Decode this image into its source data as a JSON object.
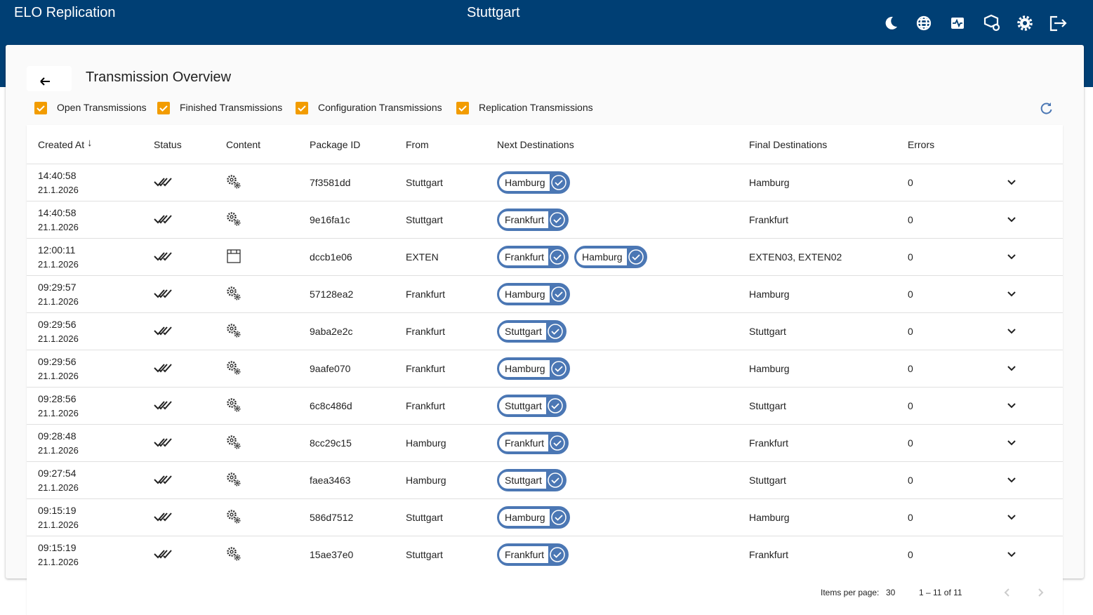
{
  "header": {
    "title": "ELO Replication",
    "location": "Stuttgart"
  },
  "page": {
    "title": "Transmission Overview"
  },
  "filters": [
    {
      "label": "Open Transmissions",
      "checked": true
    },
    {
      "label": "Finished Transmissions",
      "checked": true
    },
    {
      "label": "Configuration Transmissions",
      "checked": true
    },
    {
      "label": "Replication Transmissions",
      "checked": true
    }
  ],
  "table": {
    "columns": [
      "Created At",
      "Status",
      "Content",
      "Package ID",
      "From",
      "Next Destinations",
      "Final Destinations",
      "Errors"
    ],
    "rows": [
      {
        "time": "14:40:58",
        "date": "21.1.2026",
        "package_id": "7f3581dd",
        "from": "Stuttgart",
        "next_destinations": [
          "Hamburg"
        ],
        "final_destinations": "Hamburg",
        "errors": 0
      },
      {
        "time": "14:40:58",
        "date": "21.1.2026",
        "package_id": "9e16fa1c",
        "from": "Stuttgart",
        "next_destinations": [
          "Frankfurt"
        ],
        "final_destinations": "Frankfurt",
        "errors": 0
      },
      {
        "time": "12:00:11",
        "date": "21.1.2026",
        "package_id": "dccb1e06",
        "from": "EXTEN",
        "next_destinations": [
          "Frankfurt",
          "Hamburg"
        ],
        "final_destinations": "EXTEN03, EXTEN02",
        "errors": 0
      },
      {
        "time": "09:29:57",
        "date": "21.1.2026",
        "package_id": "57128ea2",
        "from": "Frankfurt",
        "next_destinations": [
          "Hamburg"
        ],
        "final_destinations": "Hamburg",
        "errors": 0
      },
      {
        "time": "09:29:56",
        "date": "21.1.2026",
        "package_id": "9aba2e2c",
        "from": "Frankfurt",
        "next_destinations": [
          "Stuttgart"
        ],
        "final_destinations": "Stuttgart",
        "errors": 0
      },
      {
        "time": "09:29:56",
        "date": "21.1.2026",
        "package_id": "9aafe070",
        "from": "Frankfurt",
        "next_destinations": [
          "Hamburg"
        ],
        "final_destinations": "Hamburg",
        "errors": 0
      },
      {
        "time": "09:28:56",
        "date": "21.1.2026",
        "package_id": "6c8c486d",
        "from": "Frankfurt",
        "next_destinations": [
          "Stuttgart"
        ],
        "final_destinations": "Stuttgart",
        "errors": 0
      },
      {
        "time": "09:28:48",
        "date": "21.1.2026",
        "package_id": "8cc29c15",
        "from": "Hamburg",
        "next_destinations": [
          "Frankfurt"
        ],
        "final_destinations": "Frankfurt",
        "errors": 0
      },
      {
        "time": "09:27:54",
        "date": "21.1.2026",
        "package_id": "faea3463",
        "from": "Hamburg",
        "next_destinations": [
          "Stuttgart"
        ],
        "final_destinations": "Stuttgart",
        "errors": 0
      },
      {
        "time": "09:15:19",
        "date": "21.1.2026",
        "package_id": "586d7512",
        "from": "Stuttgart",
        "next_destinations": [
          "Hamburg"
        ],
        "final_destinations": "Hamburg",
        "errors": 0
      },
      {
        "time": "09:15:19",
        "date": "21.1.2026",
        "package_id": "15ae37e0",
        "from": "Stuttgart",
        "next_destinations": [
          "Frankfurt"
        ],
        "final_destinations": "Frankfurt",
        "errors": 0
      }
    ]
  },
  "pagination": {
    "items_per_page_label": "Items per page:",
    "items_per_page": 30,
    "range": "1 – 11 of 11"
  }
}
